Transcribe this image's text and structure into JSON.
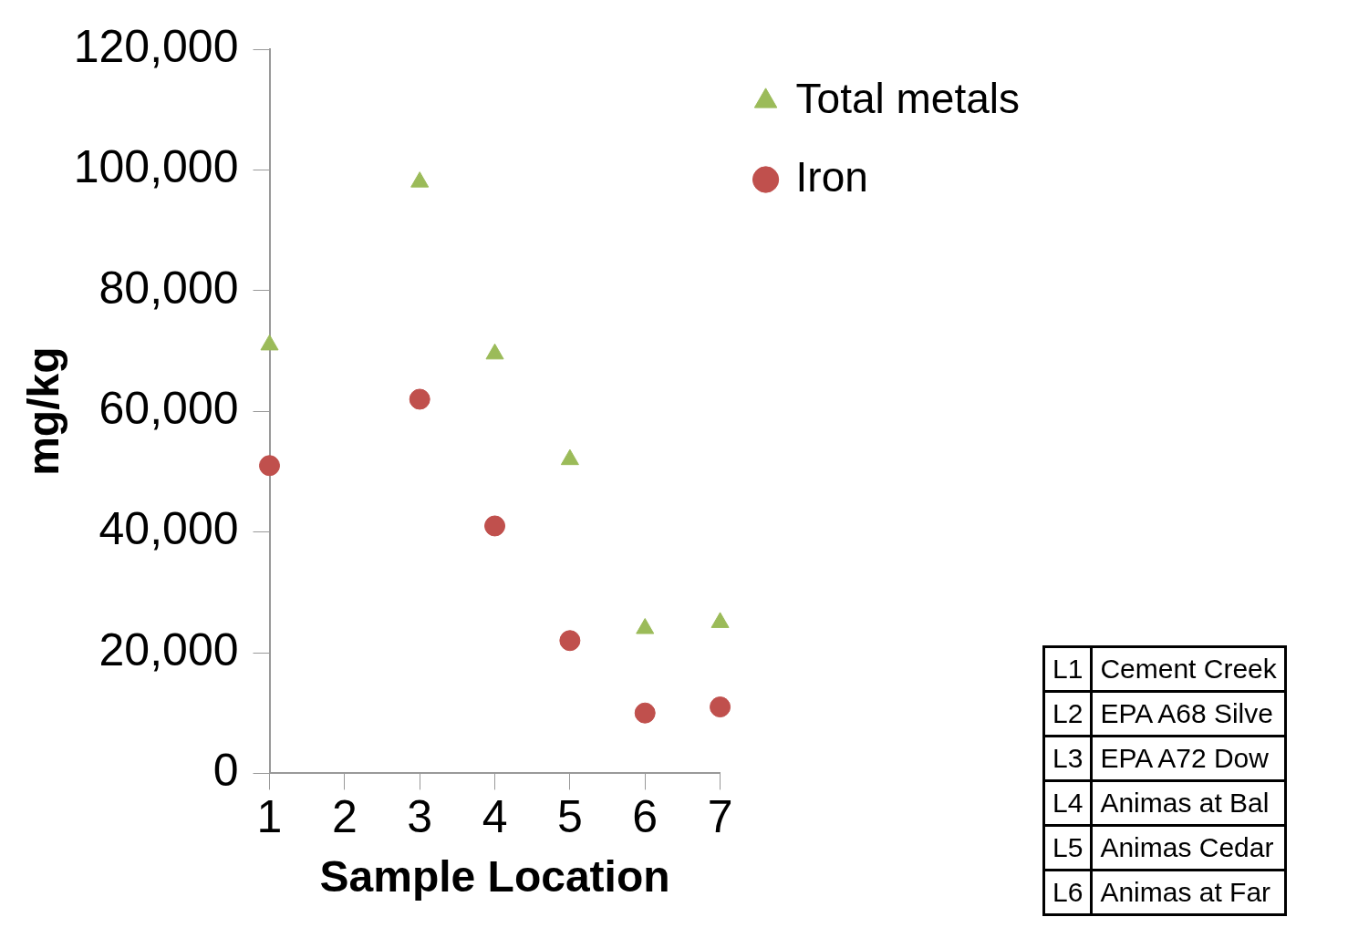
{
  "chart_data": {
    "type": "scatter",
    "xlabel": "Sample Location",
    "ylabel": "mg/kg",
    "x": [
      1,
      3,
      4,
      5,
      6,
      7
    ],
    "series": [
      {
        "name": "Total metals",
        "color": "#9bbb59",
        "marker": "triangle",
        "values": [
          71000,
          98000,
          69500,
          52000,
          24000,
          25000
        ]
      },
      {
        "name": "Iron",
        "color": "#c0504d",
        "marker": "circle",
        "values": [
          51000,
          62000,
          41000,
          22000,
          10000,
          11000
        ]
      }
    ],
    "xlim": [
      1,
      7
    ],
    "xticks": [
      1,
      2,
      3,
      4,
      5,
      6,
      7
    ],
    "ylim": [
      0,
      120000
    ],
    "yticks": [
      {
        "value": 0,
        "label": "0"
      },
      {
        "value": 20000,
        "label": "20,000"
      },
      {
        "value": 40000,
        "label": "40,000"
      },
      {
        "value": 60000,
        "label": "60,000"
      },
      {
        "value": 80000,
        "label": "80,000"
      },
      {
        "value": 100000,
        "label": "100,000"
      },
      {
        "value": 120000,
        "label": "120,000"
      }
    ],
    "grid": false,
    "legend": "top right",
    "annotations": [
      "L1",
      "Cement Creek",
      "L2",
      "EPA A68 Silve",
      "L3",
      "EPA A72 Dow",
      "L4",
      "Animas at Bal",
      "L5",
      "Animas Cedar",
      "L6",
      "Animas at Far"
    ]
  }
}
